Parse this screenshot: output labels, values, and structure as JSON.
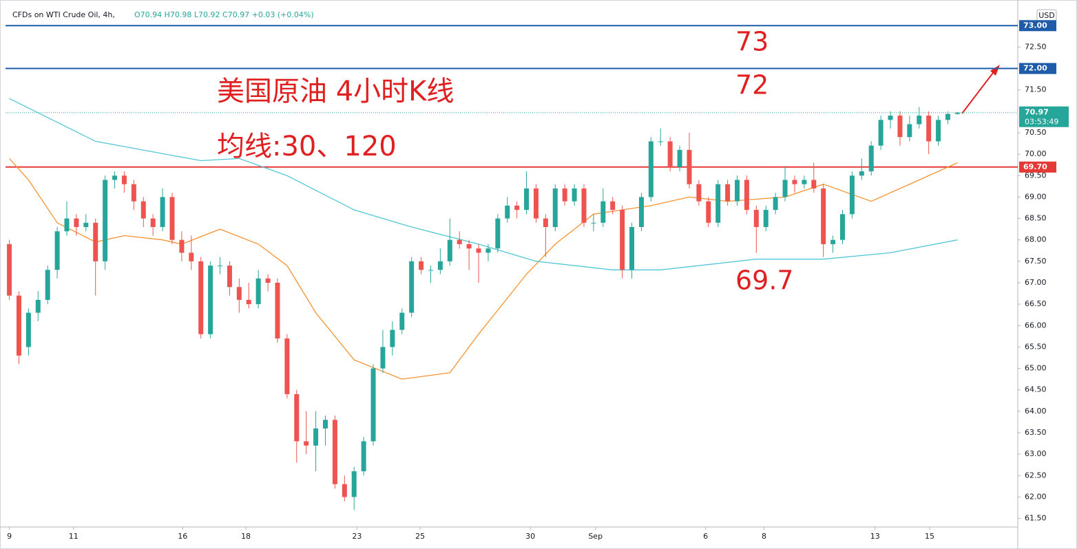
{
  "header": {
    "symbol": "CFDs on WTI Crude Oil, 4h,",
    "ohlc_text": "O70.94 H70.98 L70.92 C70.97 +0.03 (+0.04%)",
    "currency": "USD"
  },
  "chart_data": {
    "type": "candlestick",
    "annotations": [
      "73",
      "72",
      "美国原油 4小时K线",
      "均线:30、120",
      "69.7"
    ],
    "up_color": "#26a69a",
    "down_color": "#ef5350",
    "open": [
      67.9,
      66.7,
      65.5,
      66.3,
      66.6,
      67.3,
      68.2,
      68.5,
      68.3,
      68.4,
      67.5,
      69.4,
      69.5,
      69.3,
      68.9,
      68.5,
      68.3,
      69.0,
      68.0,
      67.7,
      67.5,
      65.8,
      67.4,
      67.4,
      66.9,
      66.6,
      66.5,
      67.1,
      67.0,
      65.7,
      64.4,
      63.3,
      63.2,
      63.6,
      63.8,
      62.3,
      62.0,
      62.6,
      63.3,
      65.0,
      65.5,
      65.9,
      66.3,
      67.5,
      67.3,
      67.3,
      67.5,
      68.0,
      67.9,
      67.8,
      67.7,
      67.8,
      68.5,
      68.8,
      68.7,
      69.2,
      68.5,
      68.3,
      69.2,
      68.9,
      69.2,
      68.4,
      68.4,
      68.9,
      68.7,
      67.3,
      68.3,
      69.0,
      70.3,
      70.3,
      69.7,
      70.1,
      69.3,
      68.9,
      68.4,
      69.3,
      68.9,
      69.4,
      68.7,
      68.3,
      68.7,
      69.0,
      69.4,
      69.3,
      69.4,
      69.2,
      67.9,
      68.0,
      68.6,
      69.5,
      69.6,
      70.2,
      70.8,
      70.9,
      70.4,
      70.7,
      70.9,
      70.3,
      70.8,
      70.94
    ],
    "high": [
      68.0,
      66.8,
      66.4,
      66.8,
      67.4,
      68.3,
      68.9,
      68.6,
      68.6,
      68.5,
      69.5,
      69.6,
      69.6,
      69.4,
      69.0,
      68.6,
      69.2,
      69.1,
      68.2,
      68.1,
      67.6,
      67.5,
      67.6,
      67.5,
      67.1,
      67.0,
      67.3,
      67.2,
      67.1,
      65.8,
      64.5,
      64.0,
      64.0,
      63.9,
      63.9,
      62.5,
      62.7,
      63.4,
      65.1,
      65.9,
      66.1,
      66.4,
      67.6,
      67.6,
      67.4,
      67.8,
      68.5,
      68.2,
      68.0,
      67.9,
      67.9,
      68.6,
      69.0,
      68.9,
      69.6,
      69.3,
      68.6,
      69.3,
      69.3,
      69.3,
      69.3,
      68.6,
      69.2,
      69.0,
      68.8,
      68.4,
      69.1,
      70.4,
      70.6,
      70.4,
      70.2,
      70.5,
      69.4,
      69.0,
      69.4,
      69.4,
      69.5,
      69.5,
      68.8,
      68.8,
      69.1,
      69.7,
      69.5,
      69.5,
      69.8,
      69.3,
      68.1,
      68.7,
      69.6,
      69.9,
      70.3,
      70.9,
      71.0,
      71.0,
      70.9,
      71.1,
      71.0,
      70.9,
      71.0,
      70.98
    ],
    "low": [
      66.6,
      65.1,
      65.3,
      66.1,
      66.5,
      67.1,
      68.1,
      68.1,
      68.2,
      66.7,
      67.3,
      69.2,
      69.1,
      68.7,
      68.3,
      68.1,
      68.2,
      67.9,
      67.5,
      67.3,
      65.7,
      65.7,
      67.2,
      66.7,
      66.3,
      66.4,
      66.4,
      66.8,
      65.6,
      64.3,
      62.8,
      63.0,
      62.6,
      63.2,
      62.2,
      61.9,
      61.7,
      62.5,
      63.2,
      64.9,
      65.3,
      65.8,
      66.2,
      67.2,
      67.0,
      67.2,
      67.4,
      67.8,
      67.3,
      67.0,
      67.5,
      67.7,
      68.4,
      68.5,
      68.6,
      68.4,
      67.6,
      68.2,
      68.8,
      68.8,
      68.3,
      68.2,
      68.3,
      68.6,
      67.1,
      67.1,
      68.2,
      68.9,
      70.2,
      69.6,
      69.6,
      69.2,
      68.8,
      68.3,
      68.3,
      68.8,
      68.8,
      68.6,
      67.7,
      68.2,
      68.6,
      68.9,
      69.1,
      69.2,
      69.1,
      67.6,
      67.7,
      67.9,
      68.5,
      69.4,
      69.5,
      70.1,
      70.6,
      70.2,
      70.3,
      70.6,
      70.0,
      70.2,
      70.7,
      70.92
    ],
    "close": [
      66.7,
      65.3,
      66.3,
      66.6,
      67.3,
      68.2,
      68.5,
      68.3,
      68.4,
      67.5,
      69.4,
      69.5,
      69.3,
      68.9,
      68.5,
      68.3,
      69.0,
      68.0,
      67.7,
      67.5,
      65.8,
      67.4,
      67.4,
      66.9,
      66.6,
      66.5,
      67.1,
      67.0,
      65.7,
      64.4,
      63.3,
      63.2,
      63.6,
      63.8,
      62.3,
      62.0,
      62.6,
      63.3,
      65.0,
      65.5,
      65.9,
      66.3,
      67.5,
      67.3,
      67.3,
      67.5,
      68.0,
      67.9,
      67.8,
      67.7,
      67.8,
      68.5,
      68.8,
      68.7,
      69.2,
      68.5,
      68.3,
      69.2,
      68.9,
      69.2,
      68.4,
      68.4,
      68.9,
      68.7,
      67.3,
      68.3,
      69.0,
      70.3,
      70.3,
      69.7,
      70.1,
      69.3,
      68.9,
      68.4,
      69.3,
      68.9,
      69.4,
      68.7,
      68.3,
      68.7,
      69.0,
      69.4,
      69.3,
      69.4,
      69.2,
      67.9,
      68.0,
      68.6,
      69.5,
      69.6,
      70.2,
      70.8,
      70.9,
      70.4,
      70.7,
      70.9,
      70.3,
      70.8,
      70.94,
      70.97
    ],
    "lines": [
      {
        "color": "#f7922e",
        "x": [
          0,
          2,
          5,
          9,
          12,
          16,
          18,
          22,
          26,
          29,
          32,
          36,
          41,
          46,
          49,
          54,
          57,
          61,
          67,
          71,
          75,
          81,
          85,
          90,
          93,
          99
        ],
        "values": [
          69.9,
          69.4,
          68.4,
          67.95,
          68.1,
          68.0,
          67.9,
          68.25,
          67.9,
          67.4,
          66.3,
          65.2,
          64.75,
          64.9,
          65.8,
          67.2,
          67.9,
          68.6,
          68.8,
          69.0,
          68.9,
          69.0,
          69.3,
          68.9,
          69.2,
          69.8
        ]
      },
      {
        "color": "#4fc6d6",
        "x": [
          0,
          9,
          20,
          24,
          29,
          36,
          42,
          49,
          55,
          63,
          68,
          78,
          85,
          92,
          99
        ],
        "values": [
          71.3,
          70.3,
          69.85,
          69.9,
          69.5,
          68.7,
          68.3,
          67.9,
          67.5,
          67.3,
          67.3,
          67.55,
          67.55,
          67.7,
          68.0
        ]
      }
    ],
    "levels": [
      {
        "value": 73,
        "label": "73.00",
        "color": "#1e5ba8"
      },
      {
        "value": 72,
        "label": "72.00",
        "color": "#1e5ba8"
      },
      {
        "value": 69.7,
        "label": "69.70",
        "color": "#e53935"
      }
    ],
    "last_price": {
      "value": 70.97,
      "label": "70.97",
      "countdown": "03:53:49",
      "color": "#26a69a"
    },
    "xlim": [
      -0.4,
      105.3
    ],
    "ylim": [
      61.3,
      73.47
    ],
    "xticks": [
      {
        "value": 0,
        "label": "9"
      },
      {
        "value": 6.7,
        "label": "11"
      },
      {
        "value": 18.1,
        "label": "16"
      },
      {
        "value": 24.7,
        "label": "18"
      },
      {
        "value": 36.3,
        "label": "23"
      },
      {
        "value": 42.9,
        "label": "25"
      },
      {
        "value": 54.4,
        "label": "30"
      },
      {
        "value": 61.2,
        "label": "Sep"
      },
      {
        "value": 72.7,
        "label": "6"
      },
      {
        "value": 78.8,
        "label": "8"
      },
      {
        "value": 90.4,
        "label": "13"
      },
      {
        "value": 96.1,
        "label": "15"
      }
    ],
    "yticks": [
      {
        "value": 61.5,
        "label": "61.50"
      },
      {
        "value": 62,
        "label": "62.00"
      },
      {
        "value": 62.5,
        "label": "62.50"
      },
      {
        "value": 63,
        "label": "63.00"
      },
      {
        "value": 63.5,
        "label": "63.50"
      },
      {
        "value": 64,
        "label": "64.00"
      },
      {
        "value": 64.5,
        "label": "64.50"
      },
      {
        "value": 65,
        "label": "65.00"
      },
      {
        "value": 65.5,
        "label": "65.50"
      },
      {
        "value": 66,
        "label": "66.00"
      },
      {
        "value": 66.5,
        "label": "66.50"
      },
      {
        "value": 67,
        "label": "67.00"
      },
      {
        "value": 67.5,
        "label": "67.50"
      },
      {
        "value": 68,
        "label": "68.00"
      },
      {
        "value": 68.5,
        "label": "68.50"
      },
      {
        "value": 69,
        "label": "69.00"
      },
      {
        "value": 69.5,
        "label": "69.50"
      },
      {
        "value": 70,
        "label": "70.00"
      },
      {
        "value": 70.5,
        "label": "70.50"
      },
      {
        "value": 71.5,
        "label": "71.50"
      },
      {
        "value": 72.5,
        "label": "72.50"
      }
    ]
  }
}
